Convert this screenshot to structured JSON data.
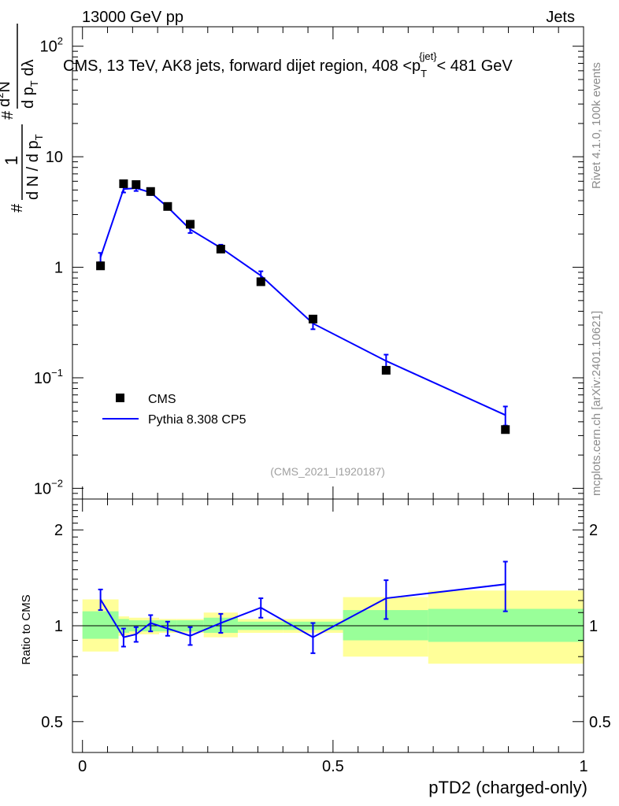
{
  "header": {
    "left": "13000 GeV pp",
    "right": "Jets"
  },
  "side_labels": {
    "rivet": "Rivet 4.1.0,  100k events",
    "mcplots": "mcplots.cern.ch [arXiv:2401.10621]"
  },
  "colors": {
    "data": "#000000",
    "mc": "#0000ff",
    "band_inner": "#99ff99",
    "band_outer": "#ffff99"
  },
  "chart_data": [
    {
      "type": "line",
      "title": "CMS, 13 TeV, AK8 jets, forward dijet region, 408 <p_T^{jet}< 481 GeV",
      "title_parts": {
        "main": "CMS, 13 TeV, AK8 jets, forward dijet region, 408 <p",
        "sub": "T",
        "sup": "{jet}",
        "tail": "< 481 GeV"
      },
      "ylabel": "1/(dN/dp_T) d^2N/(dp_T dλ)",
      "ylabel_parts": {
        "hash1": "#",
        "frac_num": "1",
        "frac_den": "d N / d p",
        "frac_den_sub": "T",
        "hash2": "#",
        "right_num": "d",
        "right_num_sup": "2",
        "right_num_tail": "N",
        "right_den": "d p",
        "right_den_sub": "T",
        "right_den_tail": " d",
        "lambda": "λ"
      },
      "yscale": "log",
      "ylim": [
        0.008,
        150
      ],
      "xlim": [
        -0.02,
        1.0
      ],
      "yticks": [
        {
          "value": 100,
          "base": "10",
          "exp": "2"
        },
        {
          "value": 10,
          "base": "10",
          "exp": ""
        },
        {
          "value": 1,
          "base": "1",
          "exp": ""
        },
        {
          "value": 0.1,
          "base": "10",
          "exp": "−1"
        },
        {
          "value": 0.01,
          "base": "10",
          "exp": "−2"
        }
      ],
      "legend_position": "lower-left",
      "annotation": "(CMS_2021_I1920187)",
      "series": [
        {
          "name": "CMS",
          "marker": "square",
          "x": [
            0.036,
            0.082,
            0.107,
            0.136,
            0.17,
            0.215,
            0.276,
            0.356,
            0.46,
            0.606,
            0.844
          ],
          "y": [
            1.03,
            5.7,
            5.6,
            4.85,
            3.55,
            2.45,
            1.46,
            0.74,
            0.34,
            0.117,
            0.034
          ],
          "xerr": [
            [
              0.0,
              0.072
            ],
            [
              0.072,
              0.093
            ],
            [
              0.093,
              0.12
            ],
            [
              0.12,
              0.153
            ],
            [
              0.153,
              0.188
            ],
            [
              0.188,
              0.242
            ],
            [
              0.242,
              0.31
            ],
            [
              0.31,
              0.4
            ],
            [
              0.4,
              0.52
            ],
            [
              0.52,
              0.69
            ],
            [
              0.69,
              1.0
            ]
          ]
        },
        {
          "name": "Pythia 8.308 CP5",
          "x": [
            0.036,
            0.082,
            0.107,
            0.136,
            0.17,
            0.215,
            0.276,
            0.356,
            0.46,
            0.606,
            0.844
          ],
          "y": [
            1.23,
            5.1,
            5.2,
            4.75,
            3.5,
            2.2,
            1.5,
            0.84,
            0.31,
            0.142,
            0.046
          ],
          "yerr": [
            0.12,
            0.35,
            0.3,
            0.25,
            0.18,
            0.16,
            0.1,
            0.08,
            0.035,
            0.02,
            0.009
          ]
        }
      ]
    },
    {
      "type": "line",
      "ylabel": "Ratio to CMS",
      "xlabel": "pTD2 (charged-only)",
      "yscale": "log",
      "ylim": [
        0.4,
        2.5
      ],
      "xlim": [
        -0.02,
        1.0
      ],
      "yticks": [
        {
          "value": 2,
          "label": "2"
        },
        {
          "value": 1,
          "label": "1"
        },
        {
          "value": 0.5,
          "label": "0.5"
        }
      ],
      "xticks": [
        {
          "value": 0,
          "label": "0"
        },
        {
          "value": 0.5,
          "label": "0.5"
        },
        {
          "value": 1,
          "label": "1"
        }
      ],
      "bands": {
        "bins": [
          [
            0.0,
            0.072
          ],
          [
            0.072,
            0.093
          ],
          [
            0.093,
            0.12
          ],
          [
            0.12,
            0.153
          ],
          [
            0.153,
            0.188
          ],
          [
            0.188,
            0.242
          ],
          [
            0.242,
            0.31
          ],
          [
            0.31,
            0.4
          ],
          [
            0.4,
            0.52
          ],
          [
            0.52,
            0.69
          ],
          [
            0.69,
            1.0
          ]
        ],
        "inner": [
          [
            0.91,
            1.11
          ],
          [
            0.95,
            1.05
          ],
          [
            0.96,
            1.04
          ],
          [
            0.96,
            1.04
          ],
          [
            0.96,
            1.04
          ],
          [
            0.96,
            1.04
          ],
          [
            0.95,
            1.06
          ],
          [
            0.97,
            1.03
          ],
          [
            0.97,
            1.03
          ],
          [
            0.9,
            1.12
          ],
          [
            0.89,
            1.13
          ]
        ],
        "outer": [
          [
            0.83,
            1.21
          ],
          [
            0.93,
            1.07
          ],
          [
            0.94,
            1.06
          ],
          [
            0.94,
            1.06
          ],
          [
            0.95,
            1.05
          ],
          [
            0.95,
            1.05
          ],
          [
            0.92,
            1.1
          ],
          [
            0.95,
            1.05
          ],
          [
            0.95,
            1.05
          ],
          [
            0.8,
            1.23
          ],
          [
            0.76,
            1.29
          ]
        ]
      },
      "series": [
        {
          "name": "Pythia 8.308 CP5 / CMS",
          "x": [
            0.036,
            0.082,
            0.107,
            0.136,
            0.17,
            0.215,
            0.276,
            0.356,
            0.46,
            0.606,
            0.844
          ],
          "y": [
            1.21,
            0.92,
            0.94,
            1.02,
            0.98,
            0.93,
            1.02,
            1.14,
            0.92,
            1.22,
            1.35
          ],
          "yerr": [
            0.09,
            0.06,
            0.05,
            0.06,
            0.05,
            0.06,
            0.07,
            0.08,
            0.1,
            0.17,
            0.24
          ]
        }
      ]
    }
  ]
}
